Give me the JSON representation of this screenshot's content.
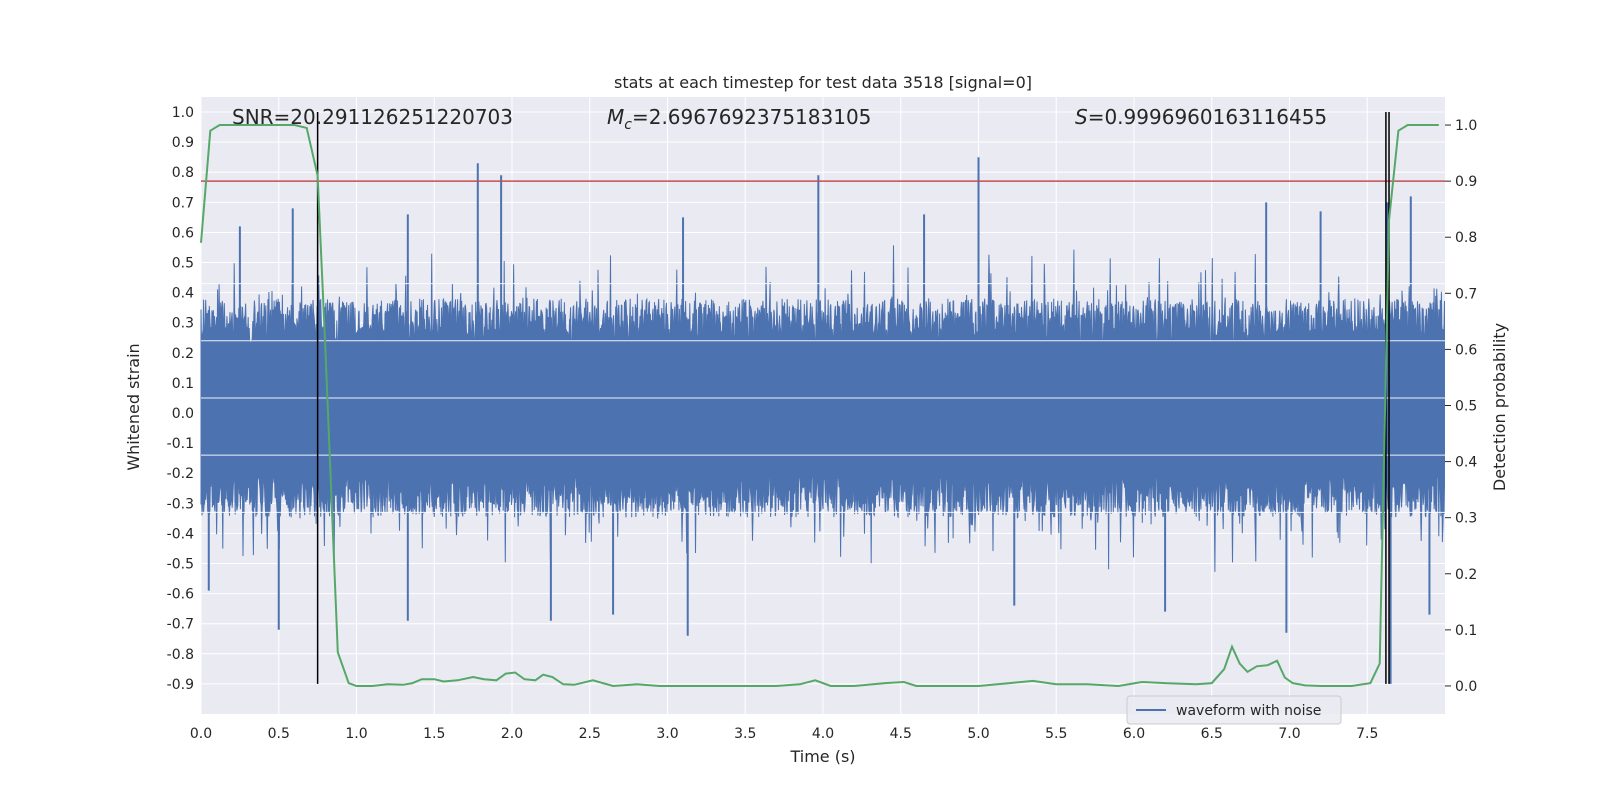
{
  "chart_data": {
    "type": "line",
    "title": "stats at each timestep for test data 3518 [signal=0]",
    "xlabel": "Time (s)",
    "ylabel": "Whitened strain",
    "y2label": "Detection probability",
    "xlim": [
      0.0,
      8.0
    ],
    "ylim": [
      -1.0,
      1.05
    ],
    "y2lim": [
      -0.05,
      1.05
    ],
    "x_ticks": [
      "0.0",
      "0.5",
      "1.0",
      "1.5",
      "2.0",
      "2.5",
      "3.0",
      "3.5",
      "4.0",
      "4.5",
      "5.0",
      "5.5",
      "6.0",
      "6.5",
      "7.0",
      "7.5"
    ],
    "y_ticks": [
      "-0.9",
      "-0.8",
      "-0.7",
      "-0.6",
      "-0.5",
      "-0.4",
      "-0.3",
      "-0.2",
      "-0.1",
      "0.0",
      "0.1",
      "0.2",
      "0.3",
      "0.4",
      "0.5",
      "0.6",
      "0.7",
      "0.8",
      "0.9",
      "1.0"
    ],
    "y2_ticks": [
      "0.0",
      "0.1",
      "0.2",
      "0.3",
      "0.4",
      "0.5",
      "0.6",
      "0.7",
      "0.8",
      "0.9",
      "1.0"
    ],
    "grid": true,
    "legend": {
      "entries": [
        "waveform with noise"
      ],
      "placement": "lower right"
    },
    "annotations": {
      "snr": "SNR=20.291126251220703",
      "mc": "=2.6967692375183105",
      "mc_symbol": "M",
      "mc_sub": "c",
      "s": "=0.9996960163116455",
      "s_symbol": "S"
    },
    "threshold": {
      "y2": 0.9,
      "color": "#c44e52"
    },
    "vertical_lines_x": [
      0.75,
      7.62,
      7.64
    ],
    "waveform": {
      "name": "waveform with noise",
      "color": "#4c72b0",
      "band_low": -0.33,
      "band_high": 0.4,
      "peaks": [
        {
          "x": 1.78,
          "y": 0.83
        },
        {
          "x": 1.93,
          "y": 0.79
        },
        {
          "x": 3.97,
          "y": 0.79
        },
        {
          "x": 5.0,
          "y": 0.85
        },
        {
          "x": 0.59,
          "y": 0.68
        },
        {
          "x": 7.63,
          "y": 0.7
        },
        {
          "x": 6.85,
          "y": 0.7
        },
        {
          "x": 7.2,
          "y": 0.67
        },
        {
          "x": 7.78,
          "y": 0.72
        },
        {
          "x": 0.25,
          "y": 0.62
        },
        {
          "x": 1.33,
          "y": 0.66
        },
        {
          "x": 4.65,
          "y": 0.66
        },
        {
          "x": 3.1,
          "y": 0.65
        },
        {
          "x": 0.5,
          "y": -0.72
        },
        {
          "x": 3.13,
          "y": -0.74
        },
        {
          "x": 6.98,
          "y": -0.73
        },
        {
          "x": 7.65,
          "y": -0.9
        },
        {
          "x": 1.33,
          "y": -0.69
        },
        {
          "x": 2.25,
          "y": -0.69
        },
        {
          "x": 0.05,
          "y": -0.59
        },
        {
          "x": 2.65,
          "y": -0.67
        },
        {
          "x": 6.2,
          "y": -0.66
        },
        {
          "x": 5.23,
          "y": -0.64
        },
        {
          "x": 7.9,
          "y": -0.67
        }
      ]
    },
    "probability": {
      "color": "#55a868",
      "x": [
        0.0,
        0.06,
        0.12,
        0.3,
        0.5,
        0.6,
        0.68,
        0.75,
        0.8,
        0.88,
        0.95,
        1.0,
        1.05,
        1.1,
        1.2,
        1.3,
        1.36,
        1.42,
        1.5,
        1.56,
        1.65,
        1.75,
        1.82,
        1.9,
        1.96,
        2.02,
        2.08,
        2.15,
        2.2,
        2.26,
        2.33,
        2.4,
        2.52,
        2.65,
        2.8,
        2.95,
        3.1,
        3.3,
        3.5,
        3.7,
        3.85,
        3.95,
        4.05,
        4.2,
        4.4,
        4.52,
        4.6,
        4.8,
        5.0,
        5.2,
        5.35,
        5.5,
        5.7,
        5.9,
        6.05,
        6.2,
        6.4,
        6.5,
        6.58,
        6.63,
        6.68,
        6.73,
        6.79,
        6.86,
        6.92,
        6.97,
        7.02,
        7.1,
        7.2,
        7.4,
        7.52,
        7.58,
        7.64,
        7.7,
        7.76,
        7.86,
        7.96
      ],
      "y": [
        0.79,
        0.99,
        1.0,
        1.0,
        1.0,
        1.0,
        0.995,
        0.91,
        0.6,
        0.06,
        0.005,
        0.0,
        0.0,
        0.0,
        0.003,
        0.002,
        0.005,
        0.012,
        0.012,
        0.008,
        0.01,
        0.016,
        0.012,
        0.01,
        0.022,
        0.024,
        0.012,
        0.01,
        0.02,
        0.016,
        0.003,
        0.002,
        0.01,
        0.0,
        0.003,
        0.0,
        0.0,
        0.0,
        0.0,
        0.0,
        0.003,
        0.01,
        0.0,
        0.0,
        0.005,
        0.007,
        0.0,
        0.0,
        0.0,
        0.005,
        0.009,
        0.003,
        0.003,
        0.0,
        0.007,
        0.005,
        0.003,
        0.005,
        0.03,
        0.07,
        0.04,
        0.025,
        0.035,
        0.037,
        0.045,
        0.015,
        0.005,
        0.001,
        0.0,
        0.0,
        0.005,
        0.04,
        0.83,
        0.99,
        1.0,
        1.0,
        1.0
      ]
    }
  }
}
